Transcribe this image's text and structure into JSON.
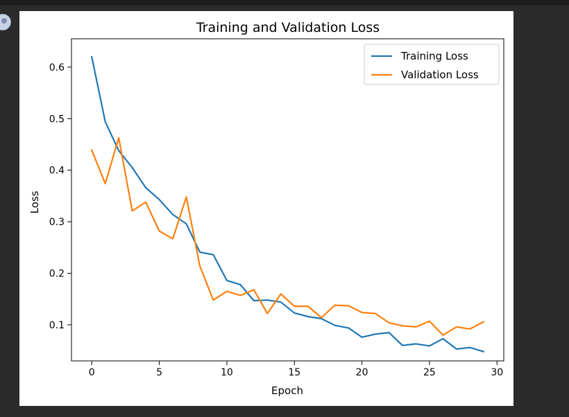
{
  "chart_data": {
    "type": "line",
    "title": "Training and Validation Loss",
    "xlabel": "Epoch",
    "ylabel": "Loss",
    "xlim": [
      -1.5,
      30.5
    ],
    "ylim": [
      0.03,
      0.655
    ],
    "xticks": [
      0,
      5,
      10,
      15,
      20,
      25,
      30
    ],
    "yticks": [
      0.1,
      0.2,
      0.3,
      0.4,
      0.5,
      0.6
    ],
    "ytick_labels": [
      "0.1",
      "0.2",
      "0.3",
      "0.4",
      "0.5",
      "0.6"
    ],
    "grid": false,
    "legend": "top-right",
    "x": [
      0,
      1,
      2,
      3,
      4,
      5,
      6,
      7,
      8,
      9,
      10,
      11,
      12,
      13,
      14,
      15,
      16,
      17,
      18,
      19,
      20,
      21,
      22,
      23,
      24,
      25,
      26,
      27,
      28,
      29
    ],
    "series": [
      {
        "name": "Training Loss",
        "color": "#1f77b4",
        "values": [
          0.62,
          0.494,
          0.438,
          0.405,
          0.366,
          0.343,
          0.314,
          0.296,
          0.241,
          0.236,
          0.186,
          0.178,
          0.147,
          0.148,
          0.144,
          0.123,
          0.116,
          0.112,
          0.099,
          0.094,
          0.076,
          0.082,
          0.085,
          0.06,
          0.063,
          0.059,
          0.073,
          0.053,
          0.056,
          0.048
        ]
      },
      {
        "name": "Validation Loss",
        "color": "#ff7f0e",
        "values": [
          0.439,
          0.374,
          0.463,
          0.321,
          0.338,
          0.282,
          0.267,
          0.348,
          0.214,
          0.148,
          0.165,
          0.157,
          0.168,
          0.122,
          0.16,
          0.136,
          0.136,
          0.114,
          0.138,
          0.137,
          0.124,
          0.122,
          0.104,
          0.098,
          0.096,
          0.107,
          0.08,
          0.096,
          0.092,
          0.106
        ]
      }
    ]
  }
}
